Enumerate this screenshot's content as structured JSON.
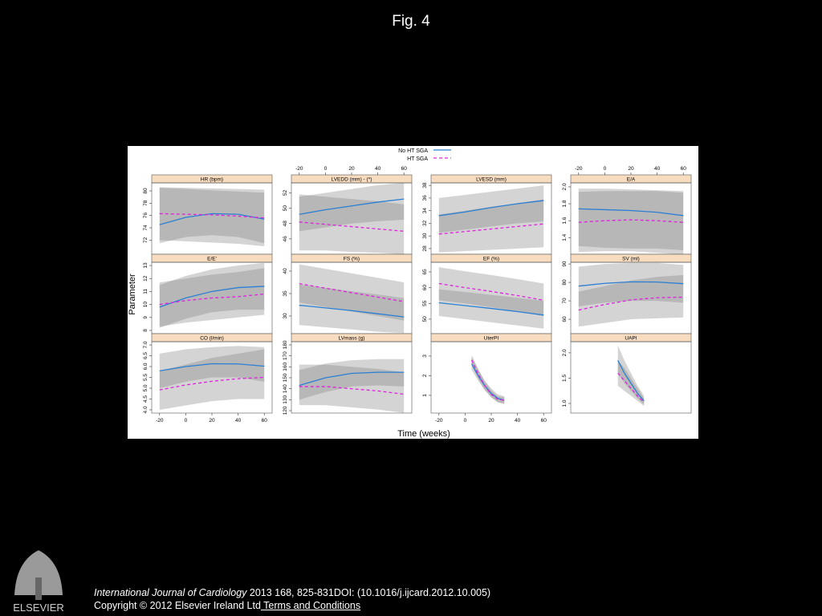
{
  "header": {
    "title": "Fig. 4"
  },
  "figure": {
    "xlabel": "Time (weeks)",
    "ylabel": "Parameter"
  },
  "chart_data": [
    {
      "type": "line",
      "title": "HR (bpm)",
      "xlim": [
        -26,
        66
      ],
      "ylim": [
        69.7,
        81.3
      ],
      "yticks": [
        72,
        74,
        76,
        78,
        80
      ],
      "x": [
        -20,
        0,
        20,
        40,
        60
      ],
      "series": [
        {
          "name": "No HT SGA",
          "color": "#2a7fd4",
          "dash": false,
          "values": [
            74.5,
            75.7,
            76.3,
            76.2,
            75.4
          ],
          "lower": [
            71.5,
            72.5,
            72.8,
            72.5,
            71.5
          ],
          "upper": [
            80.5,
            80.3,
            80.1,
            79.9,
            79.7
          ]
        },
        {
          "name": "HT SGA",
          "color": "#e020e0",
          "dash": true,
          "values": [
            76.3,
            76.2,
            76.1,
            75.9,
            75.6
          ],
          "lower": [
            72,
            71.8,
            71.6,
            71.4,
            71
          ],
          "upper": [
            80.6,
            80.5,
            80.4,
            80.3,
            80.2
          ]
        }
      ]
    },
    {
      "type": "line",
      "title": "LVEDD (mm) - (*)",
      "xlim": [
        -26,
        66
      ],
      "xticks": [
        -20,
        0,
        20,
        40,
        60
      ],
      "ylim": [
        44,
        53.3
      ],
      "yticks": [
        46,
        48,
        50,
        52
      ],
      "x": [
        -20,
        0,
        20,
        40,
        60
      ],
      "series": [
        {
          "name": "No HT SGA",
          "color": "#2a7fd4",
          "dash": false,
          "values": [
            49.2,
            49.8,
            50.3,
            50.8,
            51.2
          ],
          "lower": [
            47,
            47.5,
            48,
            48.3,
            48.5
          ],
          "upper": [
            51.5,
            52,
            52.5,
            53,
            53.3
          ]
        },
        {
          "name": "HT SGA",
          "color": "#e020e0",
          "dash": true,
          "values": [
            48.2,
            47.9,
            47.6,
            47.3,
            47
          ],
          "lower": [
            44.5,
            44.5,
            44.3,
            44.2,
            44
          ],
          "upper": [
            51.8,
            51.5,
            51.2,
            50.9,
            50.5
          ]
        }
      ]
    },
    {
      "type": "line",
      "title": "LVESD (mm)",
      "xlim": [
        -26,
        66
      ],
      "ylim": [
        27.1,
        38.4
      ],
      "yticks": [
        28,
        30,
        32,
        34,
        36,
        38
      ],
      "x": [
        -20,
        0,
        20,
        40,
        60
      ],
      "series": [
        {
          "name": "No HT SGA",
          "color": "#2a7fd4",
          "dash": false,
          "values": [
            33.2,
            33.8,
            34.5,
            35.1,
            35.6
          ],
          "lower": [
            30.5,
            31,
            31.5,
            32,
            32.3
          ],
          "upper": [
            36,
            36.5,
            37,
            37.5,
            38
          ]
        },
        {
          "name": "HT SGA",
          "color": "#e020e0",
          "dash": true,
          "values": [
            30.3,
            30.7,
            31.1,
            31.5,
            31.9
          ],
          "lower": [
            27.4,
            27.6,
            27.8,
            28,
            28.2
          ],
          "upper": [
            33.4,
            34,
            34.6,
            35.2,
            35.8
          ]
        }
      ]
    },
    {
      "type": "line",
      "title": "E/A",
      "xlim": [
        -26,
        66
      ],
      "xticks": [
        -20,
        0,
        20,
        40,
        60
      ],
      "ylim": [
        1.203,
        2.047
      ],
      "yticks": [
        1.4,
        1.6,
        1.8,
        {
          "value": 2,
          "label": "2.0"
        }
      ],
      "x": [
        -20,
        0,
        20,
        40,
        60
      ],
      "series": [
        {
          "name": "No HT SGA",
          "color": "#2a7fd4",
          "dash": false,
          "values": [
            1.74,
            1.73,
            1.72,
            1.7,
            1.66
          ],
          "lower": [
            1.3,
            1.28,
            1.27,
            1.27,
            1.25
          ],
          "upper": [
            1.98,
            1.98,
            1.97,
            1.96,
            1.95
          ]
        },
        {
          "name": "HT SGA",
          "color": "#e020e0",
          "dash": true,
          "values": [
            1.58,
            1.6,
            1.61,
            1.6,
            1.58
          ],
          "lower": [
            1.23,
            1.24,
            1.24,
            1.22,
            1.2
          ],
          "upper": [
            1.94,
            1.95,
            1.95,
            1.95,
            1.93
          ]
        }
      ]
    },
    {
      "type": "line",
      "title": "E/E'",
      "xlim": [
        -26,
        66
      ],
      "ylim": [
        7.75,
        13.25
      ],
      "yticks": [
        8,
        9,
        10,
        11,
        12,
        13
      ],
      "x": [
        -20,
        0,
        20,
        40,
        60
      ],
      "series": [
        {
          "name": "No HT SGA",
          "color": "#2a7fd4",
          "dash": false,
          "values": [
            9.8,
            10.5,
            11,
            11.3,
            11.4
          ],
          "lower": [
            8.2,
            8.9,
            9.4,
            9.6,
            9.6
          ],
          "upper": [
            11.5,
            12.2,
            12.7,
            13,
            13.2
          ]
        },
        {
          "name": "HT SGA",
          "color": "#e020e0",
          "dash": true,
          "values": [
            10,
            10.3,
            10.5,
            10.6,
            10.8
          ],
          "lower": [
            8.3,
            8.6,
            8.8,
            9,
            9.2
          ],
          "upper": [
            11.7,
            12,
            12.3,
            12.5,
            12.8
          ]
        }
      ]
    },
    {
      "type": "line",
      "title": "FS (%)",
      "xlim": [
        -26,
        66
      ],
      "ylim": [
        26.07,
        41.96
      ],
      "yticks": [
        30,
        35,
        40
      ],
      "x": [
        -20,
        0,
        20,
        40,
        60
      ],
      "series": [
        {
          "name": "No HT SGA",
          "color": "#2a7fd4",
          "dash": false,
          "values": [
            32.4,
            31.8,
            31.2,
            30.5,
            29.8
          ],
          "lower": [
            28,
            27.5,
            27,
            26.5,
            26.2
          ],
          "upper": [
            37,
            36.3,
            35.5,
            34.8,
            34
          ]
        },
        {
          "name": "HT SGA",
          "color": "#e020e0",
          "dash": true,
          "values": [
            37.2,
            36.2,
            35.2,
            34.2,
            33.2
          ],
          "lower": [
            33,
            32,
            31,
            30,
            29
          ],
          "upper": [
            41.5,
            40.5,
            39.5,
            38.5,
            37.5
          ]
        }
      ]
    },
    {
      "type": "line",
      "title": "EF (%)",
      "xlim": [
        -26,
        66
      ],
      "ylim": [
        45.4,
        68.05
      ],
      "yticks": [
        50,
        55,
        60,
        65
      ],
      "x": [
        -20,
        0,
        20,
        40,
        60
      ],
      "series": [
        {
          "name": "No HT SGA",
          "color": "#2a7fd4",
          "dash": false,
          "values": [
            55.2,
            54.3,
            53.4,
            52.4,
            51.3
          ],
          "lower": [
            51,
            50,
            49,
            48,
            47
          ],
          "upper": [
            59.5,
            58.6,
            57.7,
            56.8,
            55.8
          ]
        },
        {
          "name": "HT SGA",
          "color": "#e020e0",
          "dash": true,
          "values": [
            61.3,
            60,
            58.8,
            57.5,
            56
          ],
          "lower": [
            56,
            55,
            53.8,
            52.5,
            51
          ],
          "upper": [
            66.5,
            65.2,
            64,
            62.7,
            61.3
          ]
        }
      ]
    },
    {
      "type": "line",
      "title": "SV (ml)",
      "xlim": [
        -26,
        66
      ],
      "ylim": [
        52.2,
        90.9
      ],
      "yticks": [
        60,
        70,
        80,
        90
      ],
      "x": [
        -20,
        0,
        20,
        40,
        60
      ],
      "series": [
        {
          "name": "No HT SGA",
          "color": "#2a7fd4",
          "dash": false,
          "values": [
            78,
            79.5,
            80.3,
            80.2,
            79.3
          ],
          "lower": [
            67,
            69,
            70,
            70,
            69
          ],
          "upper": [
            88.5,
            90,
            90.5,
            90.5,
            89.5
          ]
        },
        {
          "name": "HT SGA",
          "color": "#e020e0",
          "dash": true,
          "values": [
            65,
            68,
            70.5,
            71.7,
            72
          ],
          "lower": [
            56,
            58,
            60,
            60.5,
            61
          ],
          "upper": [
            75,
            78,
            81,
            83,
            84
          ]
        }
      ]
    },
    {
      "type": "line",
      "title": "CO (l/min)",
      "xlim": [
        -26,
        66
      ],
      "xticks": [
        -20,
        0,
        20,
        40,
        60
      ],
      "ylim": [
        3.85,
        7.15
      ],
      "yticks": [
        {
          "value": 4,
          "label": "4.0"
        },
        4.5,
        {
          "value": 5,
          "label": "5.0"
        },
        5.5,
        {
          "value": 6,
          "label": "6.0"
        },
        6.5,
        {
          "value": 7,
          "label": "7.0"
        }
      ],
      "x": [
        -20,
        0,
        20,
        40,
        60
      ],
      "series": [
        {
          "name": "No HT SGA",
          "color": "#2a7fd4",
          "dash": false,
          "values": [
            5.8,
            6,
            6.13,
            6.12,
            6.02
          ],
          "lower": [
            5,
            5.3,
            5.5,
            5.5,
            5.3
          ],
          "upper": [
            6.6,
            6.8,
            6.9,
            6.95,
            6.9
          ]
        },
        {
          "name": "HT SGA",
          "color": "#e020e0",
          "dash": true,
          "values": [
            4.92,
            5.15,
            5.32,
            5.44,
            5.5
          ],
          "lower": [
            4,
            4.2,
            4.4,
            4.5,
            4.5
          ],
          "upper": [
            5.8,
            6.1,
            6.4,
            6.6,
            6.8
          ]
        }
      ]
    },
    {
      "type": "line",
      "title": "LVmass (g)",
      "xlim": [
        -26,
        66
      ],
      "ylim": [
        117.8,
        182.9
      ],
      "yticks": [
        120,
        130,
        140,
        150,
        160,
        170,
        180
      ],
      "x": [
        -20,
        0,
        20,
        40,
        60
      ],
      "series": [
        {
          "name": "No HT SGA",
          "color": "#2a7fd4",
          "dash": false,
          "values": [
            143,
            150,
            154,
            155,
            155
          ],
          "lower": [
            130,
            137,
            142,
            143,
            142
          ],
          "upper": [
            157,
            163,
            166,
            167,
            167
          ]
        },
        {
          "name": "HT SGA",
          "color": "#e020e0",
          "dash": true,
          "values": [
            142,
            142,
            140,
            138,
            135
          ],
          "lower": [
            125,
            125,
            123,
            121,
            118
          ],
          "upper": [
            162,
            162,
            160,
            158,
            155
          ]
        }
      ]
    },
    {
      "type": "line",
      "title": "UterPI",
      "xlim": [
        -26,
        66
      ],
      "xticks": [
        -20,
        0,
        20,
        40,
        60
      ],
      "ylim": [
        0.1,
        3.73
      ],
      "yticks": [
        1,
        2,
        3
      ],
      "x": [
        5,
        10,
        15,
        20,
        25,
        30
      ],
      "series": [
        {
          "name": "No HT SGA",
          "color": "#2a7fd4",
          "dash": false,
          "values": [
            2.6,
            2,
            1.5,
            1.1,
            0.85,
            0.75
          ],
          "lower": [
            2.3,
            1.75,
            1.25,
            0.9,
            0.65,
            0.55
          ],
          "upper": [
            2.95,
            2.3,
            1.75,
            1.35,
            1.05,
            0.95
          ]
        },
        {
          "name": "HT SGA",
          "color": "#e020e0",
          "dash": true,
          "values": [
            2.8,
            2.1,
            1.5,
            1.05,
            0.8,
            0.75
          ],
          "lower": [
            2.55,
            1.85,
            1.3,
            0.9,
            0.65,
            0.6
          ],
          "upper": [
            3.05,
            2.35,
            1.7,
            1.25,
            0.95,
            0.9
          ]
        }
      ]
    },
    {
      "type": "line",
      "title": "UAPI",
      "xlim": [
        -26,
        66
      ],
      "ylim": [
        0.81,
        2.22
      ],
      "yticks": [
        {
          "value": 1,
          "label": "1.0"
        },
        1.5,
        {
          "value": 2,
          "label": "2.0"
        }
      ],
      "x": [
        10,
        15,
        20,
        25,
        30
      ],
      "series": [
        {
          "name": "No HT SGA",
          "color": "#2a7fd4",
          "dash": false,
          "values": [
            1.85,
            1.6,
            1.4,
            1.2,
            1.05
          ],
          "lower": [
            1.6,
            1.4,
            1.25,
            1.1,
            0.98
          ],
          "upper": [
            2.15,
            1.85,
            1.6,
            1.35,
            1.15
          ]
        },
        {
          "name": "HT SGA",
          "color": "#e020e0",
          "dash": true,
          "values": [
            1.6,
            1.45,
            1.3,
            1.15,
            1.02
          ],
          "lower": [
            1.35,
            1.25,
            1.15,
            1.05,
            0.95
          ],
          "upper": [
            1.85,
            1.7,
            1.5,
            1.3,
            1.1
          ]
        }
      ]
    }
  ],
  "footer": {
    "logo": "ELSEVIER",
    "journal": "International Journal of Cardiology",
    "citation": " 2013 168, 825-831DOI: (10.1016/j.ijcard.2012.10.005)",
    "copyright": "Copyright © 2012 Elsevier Ireland Ltd",
    "link": " Terms and Conditions"
  }
}
